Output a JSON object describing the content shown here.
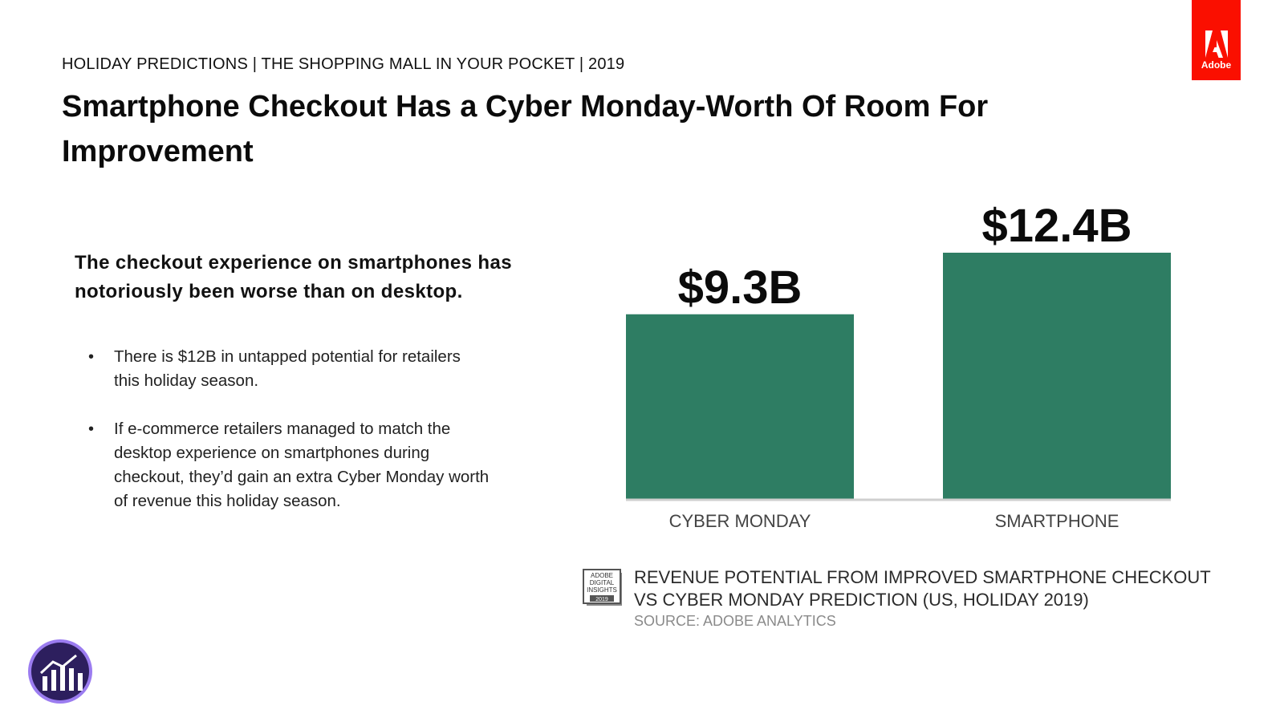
{
  "header": {
    "kicker": "HOLIDAY PREDICTIONS | THE SHOPPING MALL IN YOUR POCKET | 2019",
    "title": "Smartphone Checkout Has a Cyber Monday-Worth Of Room For Improvement"
  },
  "brand": {
    "logo_text": "Adobe",
    "logo_color": "#fa0f00",
    "logo_icon": "adobe-logo-icon",
    "badge_icon": "analytics-chart-icon",
    "badge_color": "#2d1f5e"
  },
  "body": {
    "lede": "The checkout experience on smartphones has notoriously been worse than on desktop.",
    "bullets": [
      "There is $12B in untapped potential for retailers this holiday season.",
      "If e-commerce retailers managed to match the desktop experience on smartphones during checkout, they’d gain an extra Cyber Monday worth of revenue this holiday season."
    ]
  },
  "chart_data": {
    "type": "bar",
    "categories": [
      "CYBER MONDAY",
      "SMARTPHONE"
    ],
    "values": [
      9.3,
      12.4
    ],
    "data_labels": [
      "$9.3B",
      "$12.4B"
    ],
    "bar_color": "#2e7d63",
    "ylim": [
      0,
      12.4
    ],
    "grid": false,
    "legend": "none",
    "caption": "REVENUE POTENTIAL FROM IMPROVED SMARTPHONE CHECKOUT VS CYBER MONDAY PREDICTION (US, HOLIDAY 2019)",
    "source": "SOURCE: ADOBE ANALYTICS"
  },
  "caption_icon": {
    "name": "adobe-digital-insights-icon",
    "lines": [
      "ADOBE",
      "DIGITAL",
      "INSIGHTS",
      "2019"
    ]
  }
}
